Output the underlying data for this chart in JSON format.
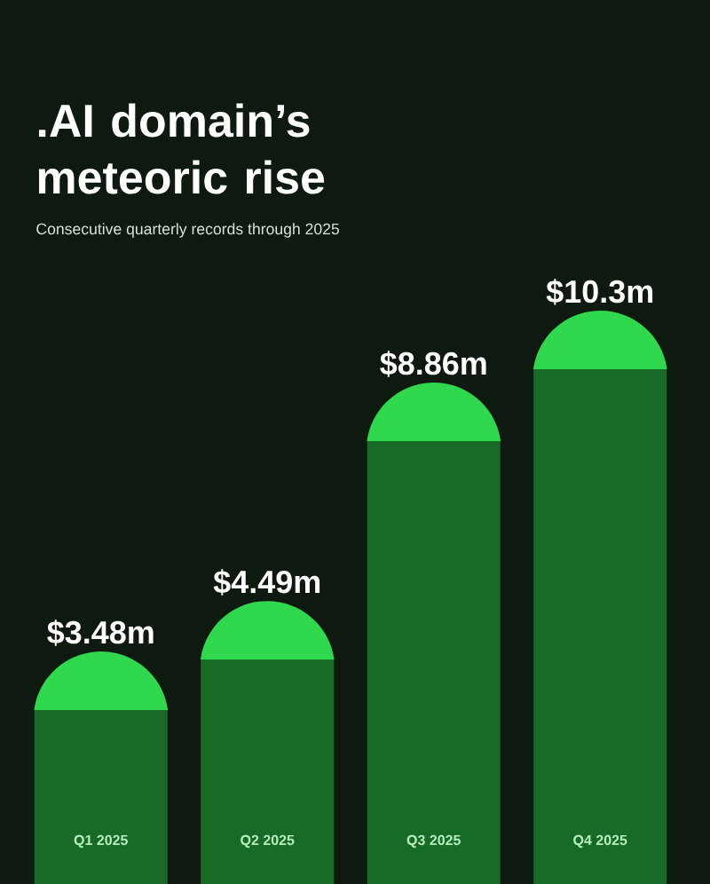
{
  "chart_data": {
    "type": "bar",
    "title": ".AI domain’s meteoric rise",
    "subtitle": "Consecutive quarterly records through 2025",
    "categories": [
      "Q1 2025",
      "Q2 2025",
      "Q3 2025",
      "Q4 2025"
    ],
    "values": [
      3.48,
      4.49,
      8.86,
      10.3
    ],
    "value_labels": [
      "$3.48m",
      "$4.49m",
      "$8.86m",
      "$10.3m"
    ],
    "color": "#186b27"
  }
}
